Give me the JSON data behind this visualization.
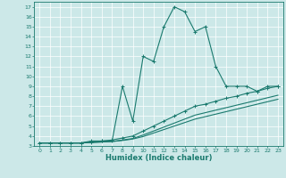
{
  "xlabel": "Humidex (Indice chaleur)",
  "bg_color": "#cce8e8",
  "grid_color": "#ffffff",
  "line_color": "#1a7a6e",
  "xlim": [
    -0.5,
    23.5
  ],
  "ylim": [
    3,
    17.5
  ],
  "xticks": [
    0,
    1,
    2,
    3,
    4,
    5,
    6,
    7,
    8,
    9,
    10,
    11,
    12,
    13,
    14,
    15,
    16,
    17,
    18,
    19,
    20,
    21,
    22,
    23
  ],
  "yticks": [
    3,
    4,
    5,
    6,
    7,
    8,
    9,
    10,
    11,
    12,
    13,
    14,
    15,
    16,
    17
  ],
  "series1_x": [
    0,
    1,
    2,
    3,
    4,
    5,
    6,
    7,
    8,
    9,
    10,
    11,
    12,
    13,
    14,
    15,
    16,
    17,
    18,
    19,
    20,
    21,
    22,
    23
  ],
  "series1_y": [
    3.3,
    3.3,
    3.3,
    3.3,
    3.3,
    3.5,
    3.5,
    3.5,
    9.0,
    5.5,
    12.0,
    11.5,
    15.0,
    17.0,
    16.5,
    14.5,
    15.0,
    11.0,
    9.0,
    9.0,
    9.0,
    8.5,
    9.0,
    9.0
  ],
  "series2_x": [
    0,
    1,
    2,
    3,
    4,
    5,
    6,
    7,
    8,
    9,
    10,
    11,
    12,
    13,
    14,
    15,
    16,
    17,
    18,
    19,
    20,
    21,
    22,
    23
  ],
  "series2_y": [
    3.3,
    3.3,
    3.3,
    3.3,
    3.3,
    3.4,
    3.5,
    3.6,
    3.8,
    4.0,
    4.5,
    5.0,
    5.5,
    6.0,
    6.5,
    7.0,
    7.2,
    7.5,
    7.8,
    8.0,
    8.3,
    8.5,
    8.8,
    9.0
  ],
  "series3_x": [
    0,
    1,
    2,
    3,
    4,
    5,
    6,
    7,
    8,
    9,
    10,
    11,
    12,
    13,
    14,
    15,
    16,
    17,
    18,
    19,
    20,
    21,
    22,
    23
  ],
  "series3_y": [
    3.3,
    3.3,
    3.3,
    3.3,
    3.3,
    3.35,
    3.4,
    3.45,
    3.6,
    3.75,
    4.1,
    4.5,
    4.9,
    5.3,
    5.7,
    6.1,
    6.35,
    6.6,
    6.85,
    7.1,
    7.35,
    7.6,
    7.85,
    8.1
  ],
  "series4_x": [
    0,
    1,
    2,
    3,
    4,
    5,
    6,
    7,
    8,
    9,
    10,
    11,
    12,
    13,
    14,
    15,
    16,
    17,
    18,
    19,
    20,
    21,
    22,
    23
  ],
  "series4_y": [
    3.3,
    3.3,
    3.3,
    3.3,
    3.3,
    3.35,
    3.4,
    3.45,
    3.55,
    3.7,
    3.95,
    4.3,
    4.65,
    5.0,
    5.35,
    5.7,
    5.95,
    6.2,
    6.45,
    6.7,
    6.95,
    7.2,
    7.45,
    7.7
  ]
}
